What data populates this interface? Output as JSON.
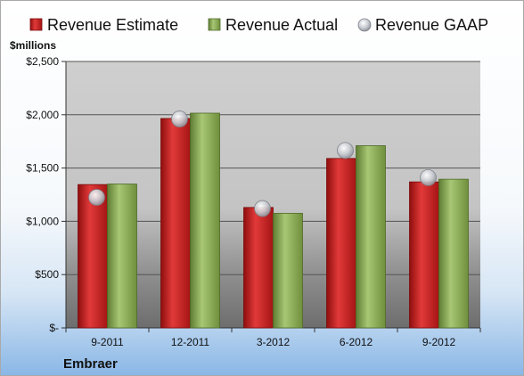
{
  "chart_data": {
    "type": "bar",
    "unit_label": "$millions",
    "company": "Embraer",
    "categories": [
      "9-2011",
      "12-2011",
      "3-2012",
      "6-2012",
      "9-2012"
    ],
    "series": [
      {
        "name": "Revenue Estimate",
        "type": "bar",
        "color": "#cc1b1b",
        "values": [
          1345,
          1965,
          1130,
          1590,
          1370
        ]
      },
      {
        "name": "Revenue Actual",
        "type": "bar",
        "color": "#8fb35a",
        "values": [
          1350,
          2015,
          1075,
          1710,
          1395
        ]
      },
      {
        "name": "Revenue GAAP",
        "type": "scatter",
        "color": "#b8bcc4",
        "values": [
          1225,
          1960,
          1120,
          1665,
          1410
        ]
      }
    ],
    "y_ticks": [
      {
        "value": 0,
        "label": "$-"
      },
      {
        "value": 500,
        "label": "$500"
      },
      {
        "value": 1000,
        "label": "$1,000"
      },
      {
        "value": 1500,
        "label": "$1,500"
      },
      {
        "value": 2000,
        "label": "$2,000"
      },
      {
        "value": 2500,
        "label": "$2,500"
      }
    ],
    "ylim": [
      0,
      2500
    ],
    "grid": true,
    "legend_position": "top"
  }
}
